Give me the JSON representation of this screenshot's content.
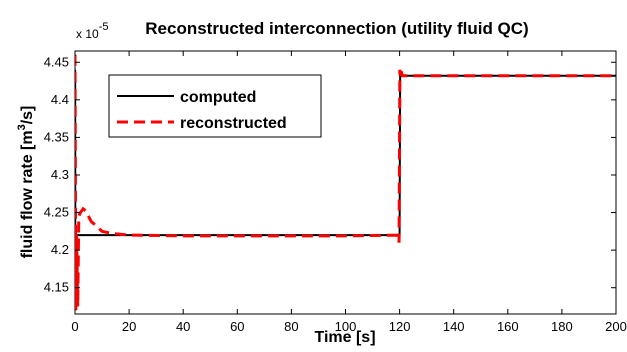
{
  "chart_data": {
    "type": "line",
    "title": "Reconstructed interconnection (utility fluid QC)",
    "xlabel": "Time [s]",
    "ylabel_main": "fluid flow rate [m",
    "ylabel_sup": "3",
    "ylabel_end": "/s]",
    "y_multiplier_base": "x 10",
    "y_multiplier_exp": "-5",
    "xlim": [
      0,
      200
    ],
    "ylim": [
      4.115,
      4.465
    ],
    "x_ticks": [
      0,
      20,
      40,
      60,
      80,
      100,
      120,
      140,
      160,
      180,
      200
    ],
    "x_tick_labels": [
      "0",
      "20",
      "40",
      "60",
      "80",
      "100",
      "120",
      "140",
      "160",
      "180",
      "200"
    ],
    "y_ticks": [
      4.15,
      4.2,
      4.25,
      4.3,
      4.35,
      4.4,
      4.45
    ],
    "y_tick_labels": [
      "4.15",
      "4.2",
      "4.25",
      "4.3",
      "4.35",
      "4.4",
      "4.45"
    ],
    "grid": false,
    "legend_position": "top-left",
    "series": [
      {
        "name": "computed",
        "color": "#000000",
        "dash": "solid",
        "x": [
          0,
          0.05,
          0.1,
          0.3,
          0.6,
          120,
          120.2,
          120.5,
          200
        ],
        "y": [
          4.2,
          4.44,
          4.22,
          4.22,
          4.22,
          4.22,
          4.432,
          4.432,
          4.432
        ]
      },
      {
        "name": "reconstructed",
        "color": "#ff0000",
        "dash": "dashed",
        "x": [
          0,
          0.3,
          0.6,
          1,
          1.4,
          2,
          3,
          4,
          5,
          6,
          8,
          10,
          14,
          20,
          40,
          60,
          80,
          100,
          119.5,
          119.8,
          120.1,
          120.3,
          120.6,
          121,
          125,
          200
        ],
        "y": [
          4.46,
          4.12,
          4.22,
          4.125,
          4.245,
          4.25,
          4.255,
          4.252,
          4.245,
          4.238,
          4.232,
          4.225,
          4.222,
          4.22,
          4.219,
          4.219,
          4.219,
          4.219,
          4.22,
          4.21,
          4.44,
          4.43,
          4.438,
          4.432,
          4.432,
          4.432
        ]
      }
    ]
  }
}
